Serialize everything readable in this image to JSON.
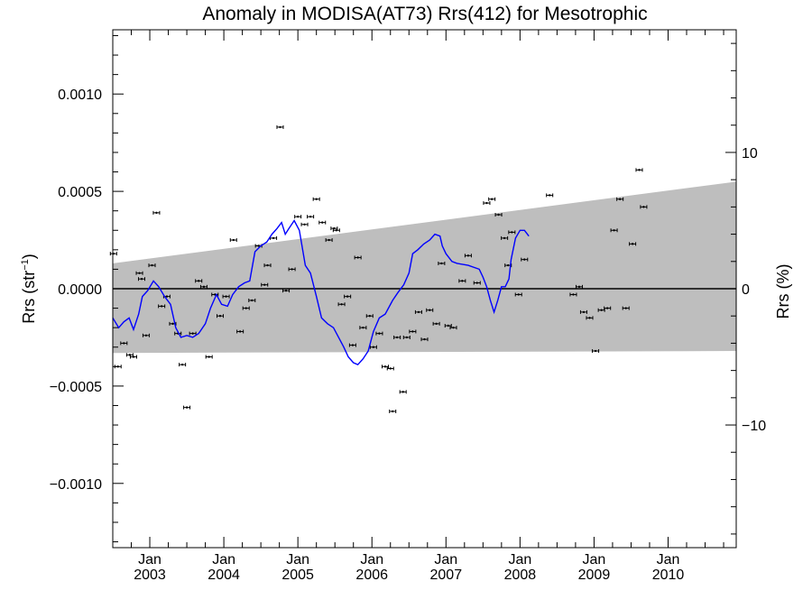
{
  "chart_data": {
    "type": "scatter",
    "title": "Anomaly in MODISA(AT73) Rrs(412) for Mesotrophic",
    "ylabel_left_main": "Rrs (str",
    "ylabel_left_sup": "−1",
    "ylabel_left_close": ")",
    "ylabel_right": "Rrs (%)",
    "xlim": [
      2002.5,
      2010.92
    ],
    "ylim": [
      -0.00133,
      0.00133
    ],
    "yticks_left": [
      {
        "value": 0.001,
        "label": "0.0010"
      },
      {
        "value": 0.0005,
        "label": "0.0005"
      },
      {
        "value": 0.0,
        "label": "0.0000"
      },
      {
        "value": -0.0005,
        "label": "−0.0005"
      },
      {
        "value": -0.001,
        "label": "−0.0010"
      }
    ],
    "yticks_right": [
      {
        "value": 10,
        "label": "10"
      },
      {
        "value": 0,
        "label": "0"
      },
      {
        "value": -10,
        "label": "−10"
      }
    ],
    "right_axis_ratio_pct_per_unit": 14286,
    "xticks": [
      {
        "x": 2003.0,
        "month": "Jan",
        "year": "2003"
      },
      {
        "x": 2004.0,
        "month": "Jan",
        "year": "2004"
      },
      {
        "x": 2005.0,
        "month": "Jan",
        "year": "2005"
      },
      {
        "x": 2006.0,
        "month": "Jan",
        "year": "2006"
      },
      {
        "x": 2007.0,
        "month": "Jan",
        "year": "2007"
      },
      {
        "x": 2008.0,
        "month": "Jan",
        "year": "2008"
      },
      {
        "x": 2009.0,
        "month": "Jan",
        "year": "2009"
      },
      {
        "x": 2010.0,
        "month": "Jan",
        "year": "2010"
      }
    ],
    "uncertainty_band": {
      "color": "#bebebe",
      "upper": [
        [
          2002.5,
          0.00013
        ],
        [
          2010.92,
          0.00055
        ]
      ],
      "lower": [
        [
          2002.5,
          -0.00033
        ],
        [
          2010.92,
          -0.00032
        ]
      ]
    },
    "zero_line": true,
    "series": [
      {
        "kind": "points",
        "color": "#000000",
        "points": [
          [
            2002.51,
            0.00018
          ],
          [
            2002.57,
            -0.0004
          ],
          [
            2002.65,
            -0.00028
          ],
          [
            2002.73,
            -0.00034
          ],
          [
            2002.78,
            -0.00035
          ],
          [
            2002.86,
            8e-05
          ],
          [
            2002.89,
            5e-05
          ],
          [
            2002.95,
            -0.00024
          ],
          [
            2003.03,
            0.00012
          ],
          [
            2003.09,
            0.00039
          ],
          [
            2003.16,
            -9e-05
          ],
          [
            2003.23,
            -4e-05
          ],
          [
            2003.31,
            -0.00018
          ],
          [
            2003.38,
            -0.00023
          ],
          [
            2003.44,
            -0.00039
          ],
          [
            2003.5,
            -0.00061
          ],
          [
            2003.58,
            -0.00023
          ],
          [
            2003.66,
            4e-05
          ],
          [
            2003.73,
            1e-05
          ],
          [
            2003.8,
            -0.00035
          ],
          [
            2003.88,
            -3e-05
          ],
          [
            2003.95,
            -0.00014
          ],
          [
            2004.03,
            -4e-05
          ],
          [
            2004.13,
            0.00025
          ],
          [
            2004.22,
            -0.00022
          ],
          [
            2004.3,
            -0.0001
          ],
          [
            2004.38,
            -6e-05
          ],
          [
            2004.47,
            0.00022
          ],
          [
            2004.55,
            2e-05
          ],
          [
            2004.59,
            0.00012
          ],
          [
            2004.67,
            0.00026
          ],
          [
            2004.76,
            0.00083
          ],
          [
            2004.84,
            -1e-05
          ],
          [
            2004.92,
            0.0001
          ],
          [
            2005.0,
            0.00037
          ],
          [
            2005.09,
            0.00033
          ],
          [
            2005.17,
            0.00037
          ],
          [
            2005.25,
            0.00046
          ],
          [
            2005.33,
            0.00034
          ],
          [
            2005.42,
            0.00025
          ],
          [
            2005.49,
            0.00031
          ],
          [
            2005.52,
            0.0003
          ],
          [
            2005.59,
            -8e-05
          ],
          [
            2005.67,
            -4e-05
          ],
          [
            2005.74,
            -0.00029
          ],
          [
            2005.81,
            0.00016
          ],
          [
            2005.88,
            -0.0002
          ],
          [
            2005.97,
            -0.00014
          ],
          [
            2006.02,
            -0.0003
          ],
          [
            2006.1,
            -0.00023
          ],
          [
            2006.18,
            -0.0004
          ],
          [
            2006.25,
            -0.00041
          ],
          [
            2006.28,
            -0.00063
          ],
          [
            2006.34,
            -0.00025
          ],
          [
            2006.42,
            -0.00053
          ],
          [
            2006.47,
            -0.00025
          ],
          [
            2006.55,
            -0.00022
          ],
          [
            2006.63,
            -0.00012
          ],
          [
            2006.71,
            -0.00026
          ],
          [
            2006.78,
            -0.00011
          ],
          [
            2006.87,
            -0.00018
          ],
          [
            2006.94,
            0.00013
          ],
          [
            2007.03,
            -0.00019
          ],
          [
            2007.1,
            -0.0002
          ],
          [
            2007.22,
            4e-05
          ],
          [
            2007.3,
            0.00017
          ],
          [
            2007.42,
            3e-05
          ],
          [
            2007.55,
            0.00044
          ],
          [
            2007.62,
            0.00046
          ],
          [
            2007.71,
            0.00038
          ],
          [
            2007.79,
            0.00026
          ],
          [
            2007.84,
            0.00012
          ],
          [
            2007.89,
            0.00029
          ],
          [
            2007.98,
            -3e-05
          ],
          [
            2008.06,
            0.00015
          ],
          [
            2008.4,
            0.00048
          ],
          [
            2008.72,
            -3e-05
          ],
          [
            2008.8,
            1e-05
          ],
          [
            2008.86,
            -0.00012
          ],
          [
            2008.94,
            -0.00015
          ],
          [
            2009.02,
            -0.00032
          ],
          [
            2009.1,
            -0.00011
          ],
          [
            2009.18,
            -0.0001
          ],
          [
            2009.27,
            0.0003
          ],
          [
            2009.35,
            0.00046
          ],
          [
            2009.43,
            -0.0001
          ],
          [
            2009.52,
            0.00023
          ],
          [
            2009.61,
            0.00061
          ],
          [
            2009.67,
            0.00042
          ]
        ]
      },
      {
        "kind": "line",
        "color": "#0000ff",
        "points": [
          [
            2002.5,
            -0.00015
          ],
          [
            2002.58,
            -0.0002
          ],
          [
            2002.65,
            -0.00017
          ],
          [
            2002.72,
            -0.00015
          ],
          [
            2002.78,
            -0.00021
          ],
          [
            2002.85,
            -0.00013
          ],
          [
            2002.9,
            -4e-05
          ],
          [
            2002.97,
            -1e-05
          ],
          [
            2003.05,
            4e-05
          ],
          [
            2003.12,
            1e-05
          ],
          [
            2003.2,
            -4e-05
          ],
          [
            2003.28,
            -8e-05
          ],
          [
            2003.35,
            -0.0002
          ],
          [
            2003.42,
            -0.00025
          ],
          [
            2003.5,
            -0.00024
          ],
          [
            2003.58,
            -0.00025
          ],
          [
            2003.66,
            -0.00023
          ],
          [
            2003.75,
            -0.00018
          ],
          [
            2003.82,
            -0.0001
          ],
          [
            2003.9,
            -3e-05
          ],
          [
            2003.97,
            -8e-05
          ],
          [
            2004.05,
            -9e-05
          ],
          [
            2004.12,
            -3e-05
          ],
          [
            2004.2,
            1e-05
          ],
          [
            2004.28,
            3e-05
          ],
          [
            2004.35,
            4e-05
          ],
          [
            2004.42,
            0.00019
          ],
          [
            2004.5,
            0.00022
          ],
          [
            2004.58,
            0.00024
          ],
          [
            2004.65,
            0.00028
          ],
          [
            2004.72,
            0.00031
          ],
          [
            2004.78,
            0.00034
          ],
          [
            2004.83,
            0.00028
          ],
          [
            2004.88,
            0.00031
          ],
          [
            2004.95,
            0.00035
          ],
          [
            2005.02,
            0.0003
          ],
          [
            2005.1,
            0.00012
          ],
          [
            2005.17,
            8e-05
          ],
          [
            2005.25,
            -4e-05
          ],
          [
            2005.32,
            -0.00015
          ],
          [
            2005.4,
            -0.00018
          ],
          [
            2005.48,
            -0.0002
          ],
          [
            2005.55,
            -0.00025
          ],
          [
            2005.62,
            -0.0003
          ],
          [
            2005.68,
            -0.00035
          ],
          [
            2005.75,
            -0.00038
          ],
          [
            2005.81,
            -0.00039
          ],
          [
            2005.88,
            -0.00036
          ],
          [
            2005.95,
            -0.00032
          ],
          [
            2006.02,
            -0.00022
          ],
          [
            2006.1,
            -0.00015
          ],
          [
            2006.18,
            -0.00013
          ],
          [
            2006.28,
            -6e-05
          ],
          [
            2006.35,
            -2e-05
          ],
          [
            2006.43,
            2e-05
          ],
          [
            2006.5,
            8e-05
          ],
          [
            2006.55,
            0.00018
          ],
          [
            2006.62,
            0.0002
          ],
          [
            2006.7,
            0.00023
          ],
          [
            2006.78,
            0.00025
          ],
          [
            2006.85,
            0.00028
          ],
          [
            2006.92,
            0.00027
          ],
          [
            2006.95,
            0.00022
          ],
          [
            2007.0,
            0.00018
          ],
          [
            2007.08,
            0.00014
          ],
          [
            2007.15,
            0.00013
          ],
          [
            2007.3,
            0.00012
          ],
          [
            2007.45,
            0.0001
          ],
          [
            2007.5,
            6e-05
          ],
          [
            2007.55,
            1e-05
          ],
          [
            2007.6,
            -6e-05
          ],
          [
            2007.65,
            -0.00012
          ],
          [
            2007.7,
            -6e-05
          ],
          [
            2007.75,
            1e-05
          ],
          [
            2007.8,
            1e-05
          ],
          [
            2007.85,
            5e-05
          ],
          [
            2007.88,
            0.00015
          ],
          [
            2007.94,
            0.00026
          ],
          [
            2008.0,
            0.0003
          ],
          [
            2008.06,
            0.0003
          ],
          [
            2008.12,
            0.00027
          ]
        ]
      }
    ]
  }
}
